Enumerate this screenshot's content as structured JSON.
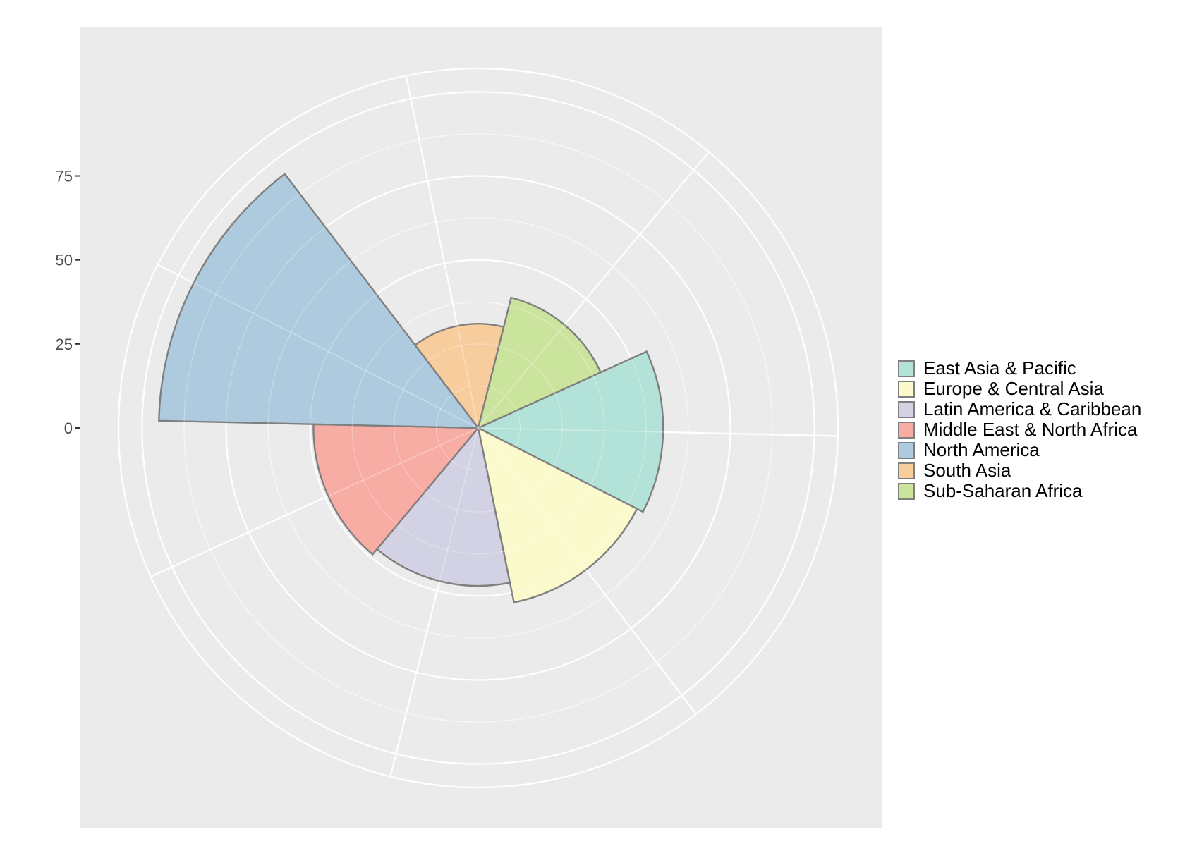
{
  "chart_data": {
    "type": "polar-bar",
    "title": "",
    "xlabel": "",
    "ylabel": "",
    "radial_ticks": [
      "0",
      "25",
      "50",
      "75"
    ],
    "radial_tick_values": [
      0,
      25,
      50,
      75
    ],
    "radial_max": 107,
    "grid": true,
    "legend_position": "right",
    "categories": [
      "East Asia & Pacific",
      "Europe & Central Asia",
      "Latin America & Caribbean",
      "Middle East & North Africa",
      "North America",
      "South Asia",
      "Sub-Saharan Africa"
    ],
    "values": [
      55,
      53,
      47,
      49,
      95,
      31,
      40
    ],
    "colors": [
      "#b3e2d8",
      "#fafacc",
      "#d2d2e4",
      "#f7ada3",
      "#aecadf",
      "#f7cd9d",
      "#cbe49d"
    ],
    "outline_color": "#7f7f7f"
  }
}
